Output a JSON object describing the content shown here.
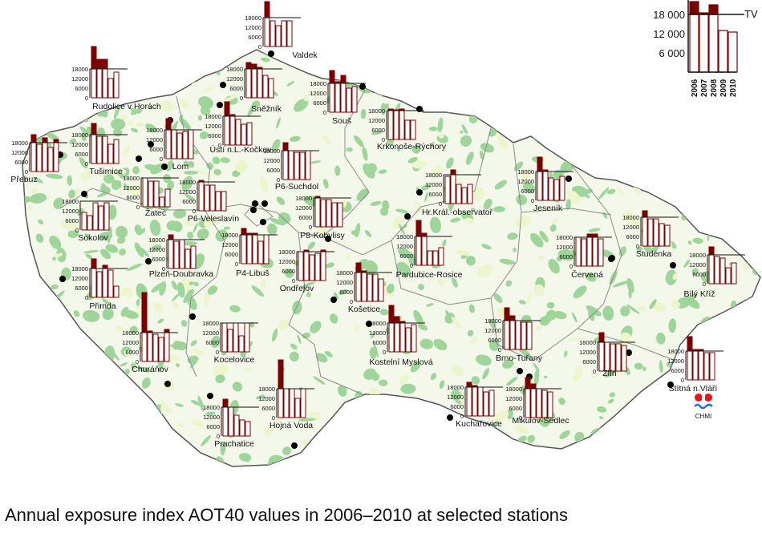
{
  "caption": "Annual exposure index AOT40 values in 2006–2010 at selected stations",
  "legend": {
    "years": [
      "2006",
      "2007",
      "2008",
      "2009",
      "2010"
    ],
    "ticks": [
      "6 000",
      "12 000",
      "18 000"
    ],
    "threshold_label": "TV",
    "example_values": [
      22000,
      18500,
      21000,
      13000,
      12500
    ]
  },
  "logo_text": "CHMI",
  "colors": {
    "exceed_fill": "#7a0000",
    "bar_stroke": "#7a0000",
    "below_fill": "#ffffff",
    "forest": "#9fd49a",
    "agri": "#edf5cc",
    "border": "#555555",
    "station": "#000000"
  },
  "chart_data": {
    "type": "bar",
    "title": "",
    "categories": [
      "2006",
      "2007",
      "2008",
      "2009",
      "2010"
    ],
    "ylim": [
      0,
      18000
    ],
    "yticks": [
      6000,
      12000,
      18000
    ],
    "threshold": 18000,
    "stations": [
      {
        "name": "Valdek",
        "values": [
          28000,
          16000,
          13000,
          16000,
          16000
        ]
      },
      {
        "name": "Rudolice v Horách",
        "values": [
          32000,
          24000,
          24000,
          12000,
          16000
        ]
      },
      {
        "name": "Sněžník",
        "values": [
          22000,
          21000,
          19000,
          14000,
          12000
        ]
      },
      {
        "name": "Souš",
        "values": [
          26000,
          19000,
          23000,
          15000,
          16000
        ]
      },
      {
        "name": "Krkonoše-Rýchory",
        "values": [
          19000,
          18500,
          19000,
          12000,
          12000
        ]
      },
      {
        "name": "Přebuz",
        "values": [
          23000,
          17000,
          21000,
          15000,
          20000
        ]
      },
      {
        "name": "Tušimice",
        "values": [
          25000,
          17000,
          17000,
          12000,
          15000
        ]
      },
      {
        "name": "Lom",
        "values": [
          25000,
          18000,
          16000,
          17000,
          18000
        ]
      },
      {
        "name": "Ústí n.L.-Kočkov",
        "values": [
          27000,
          19000,
          16000,
          13000,
          14000
        ]
      },
      {
        "name": "P6-Suchdol",
        "values": [
          23000,
          18000,
          17000,
          17000,
          18000
        ]
      },
      {
        "name": "Hr.Král.-observatoř",
        "values": [
          17000,
          21000,
          12000,
          10000,
          12000
        ]
      },
      {
        "name": "Jeseník",
        "values": [
          27000,
          19000,
          14000,
          13000,
          15000
        ]
      },
      {
        "name": "Žatec",
        "values": [
          18000,
          16000,
          16000,
          6000,
          11000
        ]
      },
      {
        "name": "P6-Veleslavín",
        "values": [
          19000,
          16000,
          16000,
          12000,
          12000
        ]
      },
      {
        "name": "Sokolov",
        "values": [
          11000,
          9000,
          17000,
          15000,
          17000
        ]
      },
      {
        "name": "P8-Kobylisy",
        "values": [
          19000,
          17000,
          17000,
          15000,
          15000
        ]
      },
      {
        "name": "Studénka",
        "values": [
          22000,
          17000,
          17000,
          14000,
          13000
        ]
      },
      {
        "name": "Plzeň-Doubravka",
        "values": [
          21000,
          17000,
          18000,
          12000,
          14000
        ]
      },
      {
        "name": "P4-Libuš",
        "values": [
          22000,
          19000,
          19000,
          14000,
          18000
        ]
      },
      {
        "name": "Ondřejov",
        "values": [
          18000,
          19000,
          16000,
          17000,
          19000
        ]
      },
      {
        "name": "Pardubice-Rosice",
        "values": [
          28000,
          20000,
          9000,
          9000,
          11000
        ]
      },
      {
        "name": "Červená",
        "values": [
          18000,
          17000,
          20000,
          20000,
          17000
        ]
      },
      {
        "name": "Bílý Kříž",
        "values": [
          23000,
          17000,
          16000,
          10000,
          13000
        ]
      },
      {
        "name": "Přimda",
        "values": [
          24000,
          16000,
          20000,
          17000,
          7000
        ]
      },
      {
        "name": "Košetice",
        "values": [
          24000,
          19000,
          17000,
          17000,
          14000
        ]
      },
      {
        "name": "Churáňov",
        "values": [
          43000,
          19000,
          17000,
          15000,
          20000
        ]
      },
      {
        "name": "Kocelovice",
        "values": [
          18000,
          14000,
          18000,
          10000,
          18000
        ]
      },
      {
        "name": "Kostelní Myslová",
        "values": [
          29000,
          22000,
          19000,
          15000,
          17000
        ]
      },
      {
        "name": "Brno-Tuřany",
        "values": [
          26000,
          21000,
          18000,
          17000,
          17000
        ]
      },
      {
        "name": "Zlín",
        "values": [
          24000,
          18000,
          17000,
          17000,
          16000
        ]
      },
      {
        "name": "Štítná n.Vláří",
        "values": [
          27000,
          19000,
          19000,
          17000,
          17000
        ]
      },
      {
        "name": "Prachatice",
        "values": [
          23000,
          18000,
          13000,
          10000,
          9000
        ]
      },
      {
        "name": "Hojná Voda",
        "values": [
          36000,
          18000,
          18000,
          12000,
          18000
        ]
      },
      {
        "name": "Kuchařovice",
        "values": [
          21000,
          19000,
          18000,
          15000,
          16000
        ]
      },
      {
        "name": "Mikulov-Sedlec",
        "values": [
          25000,
          21000,
          18000,
          17000,
          16000
        ]
      }
    ]
  }
}
